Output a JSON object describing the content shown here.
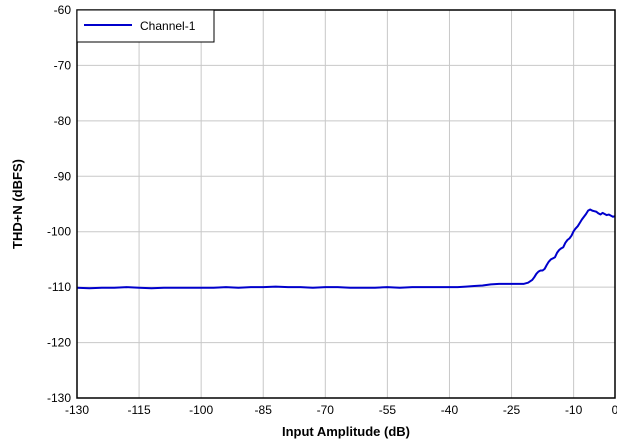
{
  "chart_data": {
    "type": "line",
    "title": "",
    "xlabel": "Input Amplitude (dB)",
    "ylabel": "THD+N (dBFS)",
    "xlim": [
      -130,
      0
    ],
    "ylim": [
      -130,
      -60
    ],
    "x_ticks": [
      -130,
      -115,
      -100,
      -85,
      -70,
      -55,
      -40,
      -25,
      -10,
      0
    ],
    "x_tick_labels": [
      "-130",
      "-115",
      "-100",
      "-85",
      "-70",
      "-55",
      "-40",
      "-25",
      "-10",
      "0"
    ],
    "y_ticks": [
      -60,
      -70,
      -80,
      -90,
      -100,
      -110,
      -120,
      -130
    ],
    "y_tick_labels": [
      "-60",
      "-70",
      "-80",
      "-90",
      "-100",
      "-110",
      "-120",
      "-130"
    ],
    "x_gridlines": [
      -130,
      -115,
      -100,
      -85,
      -70,
      -55,
      -40,
      -25,
      -10,
      0
    ],
    "y_gridlines": [
      -60,
      -70,
      -80,
      -90,
      -100,
      -110,
      -120,
      -130
    ],
    "grid": true,
    "legend_position": "top-left",
    "series": [
      {
        "name": "Channel-1",
        "color": "#0000cc",
        "x": [
          -130,
          -127,
          -124,
          -121,
          -118,
          -115,
          -112,
          -109,
          -106,
          -103,
          -100,
          -97,
          -94,
          -91,
          -88,
          -85,
          -82,
          -79,
          -76,
          -73,
          -70,
          -67,
          -64,
          -61,
          -58,
          -55,
          -52,
          -49,
          -46,
          -43,
          -40,
          -38,
          -36,
          -34,
          -32,
          -30,
          -28,
          -26,
          -24,
          -22,
          -21,
          -20,
          -19.5,
          -19,
          -18.5,
          -18,
          -17.5,
          -17,
          -16.5,
          -16,
          -15.5,
          -15,
          -14.5,
          -14,
          -13.5,
          -13,
          -12.5,
          -12,
          -11.5,
          -11,
          -10.5,
          -10,
          -9.5,
          -9,
          -8.5,
          -8,
          -7.5,
          -7,
          -6.5,
          -6,
          -5.5,
          -5,
          -4.5,
          -4,
          -3.5,
          -3,
          -2.5,
          -2,
          -1.5,
          -1,
          -0.5,
          0
        ],
        "y": [
          -110.1,
          -110.2,
          -110.1,
          -110.1,
          -110.0,
          -110.1,
          -110.2,
          -110.1,
          -110.1,
          -110.1,
          -110.1,
          -110.1,
          -110.0,
          -110.1,
          -110.0,
          -110.0,
          -109.9,
          -110.0,
          -110.0,
          -110.1,
          -110.0,
          -110.0,
          -110.1,
          -110.1,
          -110.1,
          -110.0,
          -110.1,
          -110.0,
          -110.0,
          -110.0,
          -110.0,
          -110.0,
          -109.9,
          -109.8,
          -109.7,
          -109.5,
          -109.4,
          -109.4,
          -109.4,
          -109.4,
          -109.2,
          -108.7,
          -108.2,
          -107.6,
          -107.2,
          -107.0,
          -107.0,
          -106.7,
          -106.0,
          -105.4,
          -105.0,
          -104.8,
          -104.6,
          -103.8,
          -103.3,
          -103.0,
          -102.8,
          -102.0,
          -101.5,
          -101.2,
          -100.7,
          -99.9,
          -99.4,
          -99.0,
          -98.4,
          -97.8,
          -97.3,
          -96.8,
          -96.2,
          -96.0,
          -96.2,
          -96.3,
          -96.4,
          -96.7,
          -96.9,
          -96.6,
          -96.8,
          -97.0,
          -96.9,
          -97.1,
          -97.3,
          -97.2
        ]
      }
    ]
  }
}
